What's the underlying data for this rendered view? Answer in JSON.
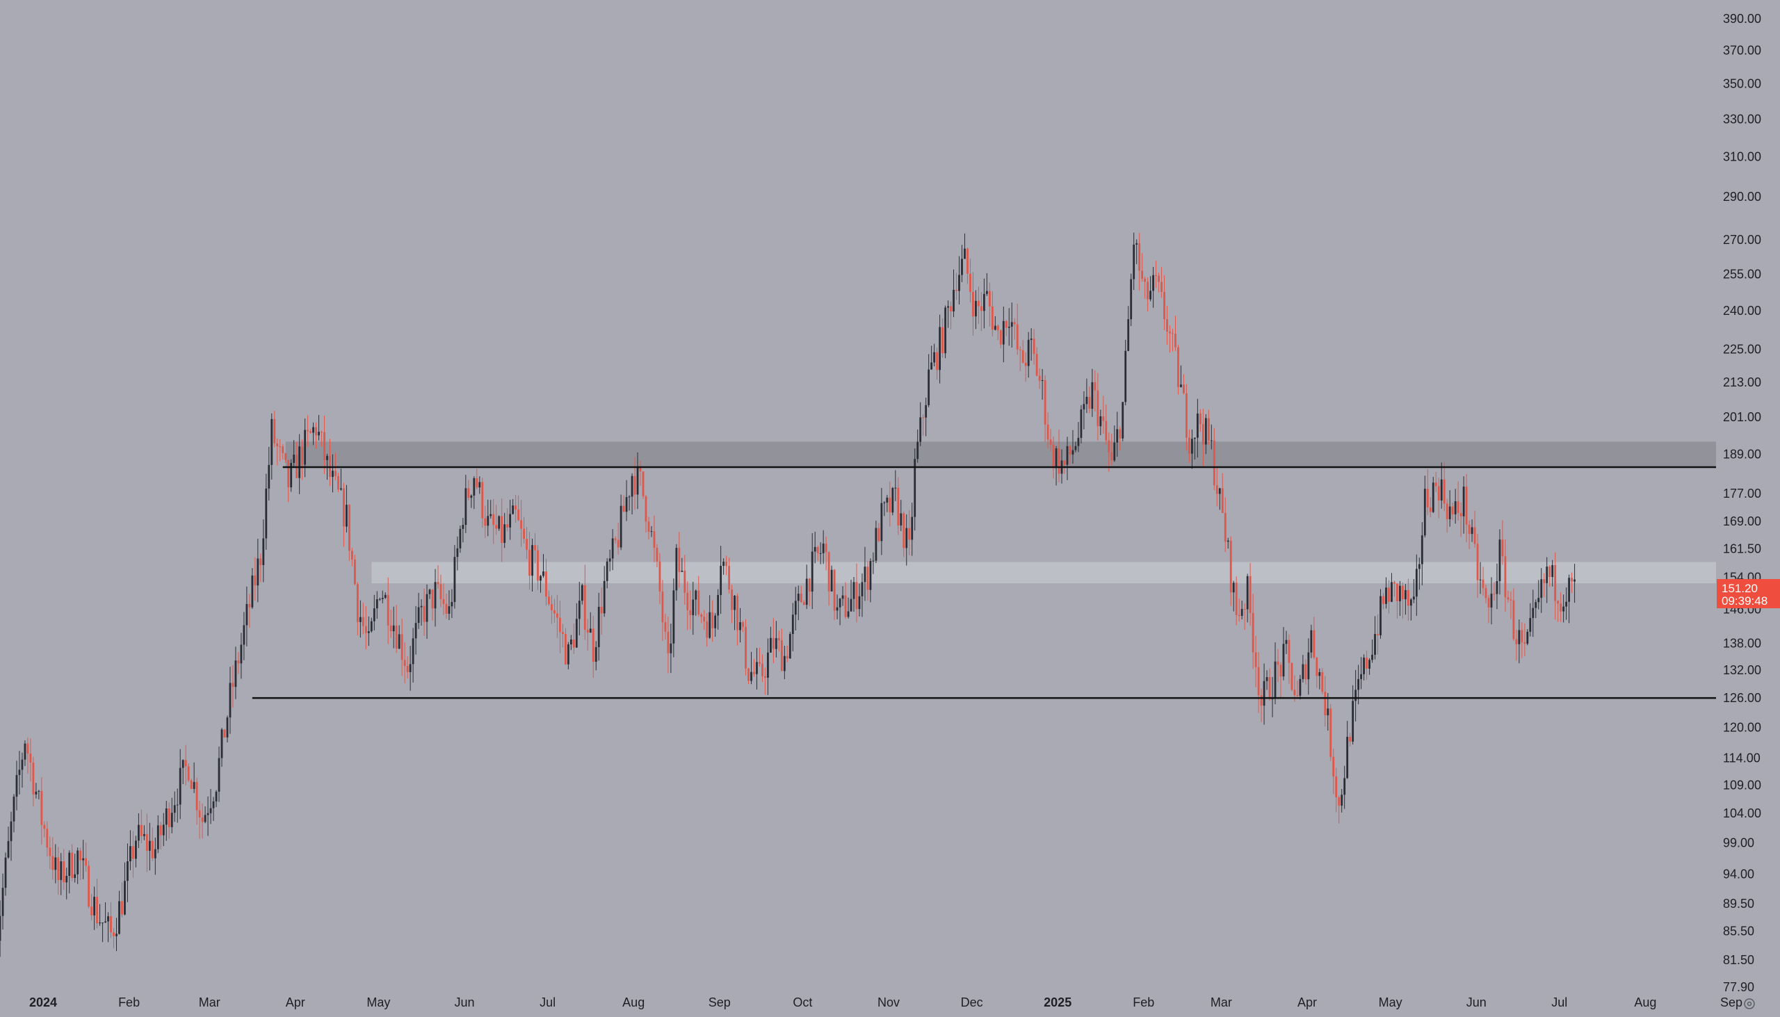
{
  "colors": {
    "background": "#a9aab3",
    "up_candle": "#2a2d35",
    "down_candle": "#e0574a",
    "resistance_zone": "#8e8f97",
    "mid_zone": "#c4c5cc",
    "level_line": "#111111",
    "price_tag": "#ef4d3d"
  },
  "chart_data": {
    "type": "candlestick",
    "y_scale": "log",
    "ylim": [
      77.9,
      390.0
    ],
    "xlim": [
      "2023-12-25",
      "2025-09-10"
    ],
    "y_ticks": [
      "390.00",
      "370.00",
      "350.00",
      "330.00",
      "310.00",
      "290.00",
      "270.00",
      "255.00",
      "240.00",
      "225.00",
      "213.00",
      "201.00",
      "189.00",
      "177.00",
      "169.00",
      "161.50",
      "154.00",
      "146.00",
      "138.00",
      "132.00",
      "126.00",
      "120.00",
      "114.00",
      "109.00",
      "104.00",
      "99.00",
      "94.00",
      "89.50",
      "85.50",
      "81.50",
      "77.90"
    ],
    "x_ticks": [
      {
        "label": "2024",
        "date": "2024-01-01",
        "bold": true
      },
      {
        "label": "Feb",
        "date": "2024-02-01"
      },
      {
        "label": "Mar",
        "date": "2024-03-01"
      },
      {
        "label": "Apr",
        "date": "2024-04-01"
      },
      {
        "label": "May",
        "date": "2024-05-01"
      },
      {
        "label": "Jun",
        "date": "2024-06-01"
      },
      {
        "label": "Jul",
        "date": "2024-07-01"
      },
      {
        "label": "Aug",
        "date": "2024-08-01"
      },
      {
        "label": "Sep",
        "date": "2024-09-01"
      },
      {
        "label": "Oct",
        "date": "2024-10-01"
      },
      {
        "label": "Nov",
        "date": "2024-11-01"
      },
      {
        "label": "Dec",
        "date": "2024-12-01"
      },
      {
        "label": "2025",
        "date": "2025-01-01",
        "bold": true
      },
      {
        "label": "Feb",
        "date": "2025-02-01"
      },
      {
        "label": "Mar",
        "date": "2025-03-01"
      },
      {
        "label": "Apr",
        "date": "2025-04-01"
      },
      {
        "label": "May",
        "date": "2025-05-01"
      },
      {
        "label": "Jun",
        "date": "2025-06-01"
      },
      {
        "label": "Jul",
        "date": "2025-07-01"
      },
      {
        "label": "Aug",
        "date": "2025-08-01"
      },
      {
        "label": "Sep",
        "date": "2025-09-01"
      }
    ],
    "price_path": [
      [
        "2023-12-25",
        80
      ],
      [
        "2024-01-02",
        105
      ],
      [
        "2024-01-06",
        118
      ],
      [
        "2024-01-12",
        103
      ],
      [
        "2024-01-18",
        93
      ],
      [
        "2024-01-25",
        97
      ],
      [
        "2024-02-01",
        88
      ],
      [
        "2024-02-06",
        85
      ],
      [
        "2024-02-10",
        90
      ],
      [
        "2024-02-15",
        100
      ],
      [
        "2024-02-22",
        98
      ],
      [
        "2024-02-28",
        106
      ],
      [
        "2024-03-05",
        113
      ],
      [
        "2024-03-10",
        103
      ],
      [
        "2024-03-15",
        110
      ],
      [
        "2024-03-20",
        126
      ],
      [
        "2024-03-26",
        144
      ],
      [
        "2024-03-31",
        160
      ],
      [
        "2024-04-04",
        196
      ],
      [
        "2024-04-10",
        180
      ],
      [
        "2024-04-15",
        190
      ],
      [
        "2024-04-20",
        198
      ],
      [
        "2024-04-25",
        182
      ],
      [
        "2024-05-01",
        170
      ],
      [
        "2024-05-05",
        147
      ],
      [
        "2024-05-09",
        137
      ],
      [
        "2024-05-13",
        152
      ],
      [
        "2024-05-18",
        143
      ],
      [
        "2024-05-23",
        133
      ],
      [
        "2024-05-28",
        145
      ],
      [
        "2024-06-02",
        150
      ],
      [
        "2024-06-07",
        145
      ],
      [
        "2024-06-12",
        172
      ],
      [
        "2024-06-16",
        183
      ],
      [
        "2024-06-21",
        168
      ],
      [
        "2024-06-26",
        165
      ],
      [
        "2024-07-01",
        170
      ],
      [
        "2024-07-05",
        160
      ],
      [
        "2024-07-10",
        155
      ],
      [
        "2024-07-15",
        145
      ],
      [
        "2024-07-20",
        135
      ],
      [
        "2024-07-25",
        148
      ],
      [
        "2024-07-29",
        137
      ],
      [
        "2024-08-02",
        152
      ],
      [
        "2024-08-07",
        165
      ],
      [
        "2024-08-12",
        183
      ],
      [
        "2024-08-15",
        180
      ],
      [
        "2024-08-18",
        170
      ],
      [
        "2024-08-22",
        150
      ],
      [
        "2024-08-25",
        132
      ],
      [
        "2024-08-28",
        158
      ],
      [
        "2024-09-01",
        150
      ],
      [
        "2024-09-06",
        145
      ],
      [
        "2024-09-10",
        142
      ],
      [
        "2024-09-13",
        160
      ],
      [
        "2024-09-18",
        148
      ],
      [
        "2024-09-23",
        132
      ],
      [
        "2024-09-27",
        130
      ],
      [
        "2024-10-02",
        138
      ],
      [
        "2024-10-06",
        135
      ],
      [
        "2024-10-10",
        145
      ],
      [
        "2024-10-15",
        155
      ],
      [
        "2024-10-20",
        162
      ],
      [
        "2024-10-25",
        145
      ],
      [
        "2024-10-30",
        148
      ],
      [
        "2024-11-05",
        155
      ],
      [
        "2024-11-10",
        170
      ],
      [
        "2024-11-15",
        175
      ],
      [
        "2024-11-20",
        160
      ],
      [
        "2024-11-22",
        185
      ],
      [
        "2024-11-27",
        215
      ],
      [
        "2024-12-02",
        230
      ],
      [
        "2024-12-07",
        255
      ],
      [
        "2024-12-10",
        260
      ],
      [
        "2024-12-14",
        240
      ],
      [
        "2024-12-18",
        245
      ],
      [
        "2024-12-22",
        230
      ],
      [
        "2024-12-26",
        240
      ],
      [
        "2024-12-30",
        220
      ],
      [
        "2025-01-03",
        225
      ],
      [
        "2025-01-07",
        210
      ],
      [
        "2025-01-10",
        190
      ],
      [
        "2025-01-15",
        185
      ],
      [
        "2025-01-20",
        195
      ],
      [
        "2025-01-25",
        210
      ],
      [
        "2025-01-28",
        200
      ],
      [
        "2025-02-01",
        185
      ],
      [
        "2025-02-05",
        205
      ],
      [
        "2025-02-09",
        270
      ],
      [
        "2025-02-13",
        245
      ],
      [
        "2025-02-17",
        250
      ],
      [
        "2025-02-21",
        235
      ],
      [
        "2025-02-25",
        215
      ],
      [
        "2025-03-01",
        195
      ],
      [
        "2025-03-05",
        200
      ],
      [
        "2025-03-09",
        190
      ],
      [
        "2025-03-14",
        165
      ],
      [
        "2025-03-18",
        145
      ],
      [
        "2025-03-22",
        150
      ],
      [
        "2025-03-27",
        125
      ],
      [
        "2025-03-31",
        130
      ],
      [
        "2025-04-05",
        135
      ],
      [
        "2025-04-09",
        125
      ],
      [
        "2025-04-14",
        140
      ],
      [
        "2025-04-19",
        125
      ],
      [
        "2025-04-24",
        105
      ],
      [
        "2025-04-28",
        120
      ],
      [
        "2025-05-02",
        130
      ],
      [
        "2025-05-06",
        138
      ],
      [
        "2025-05-11",
        150
      ],
      [
        "2025-05-16",
        150
      ],
      [
        "2025-05-21",
        145
      ],
      [
        "2025-05-25",
        175
      ],
      [
        "2025-05-30",
        180
      ],
      [
        "2025-06-04",
        170
      ],
      [
        "2025-06-08",
        175
      ],
      [
        "2025-06-13",
        155
      ],
      [
        "2025-06-17",
        145
      ],
      [
        "2025-06-21",
        160
      ],
      [
        "2025-06-26",
        142
      ],
      [
        "2025-06-30",
        135
      ],
      [
        "2025-07-04",
        145
      ],
      [
        "2025-07-08",
        155
      ],
      [
        "2025-07-13",
        150
      ],
      [
        "2025-07-18",
        151.2
      ]
    ],
    "zones": [
      {
        "from": 185,
        "to": 193,
        "start": "2024-04-09"
      },
      {
        "from": 152.5,
        "to": 158,
        "start": "2024-05-10"
      }
    ],
    "levels": [
      {
        "value": 185,
        "start": "2024-04-08"
      },
      {
        "value": 126,
        "start": "2024-03-28"
      }
    ],
    "last_price": "151.20",
    "countdown": "09:39:48"
  }
}
